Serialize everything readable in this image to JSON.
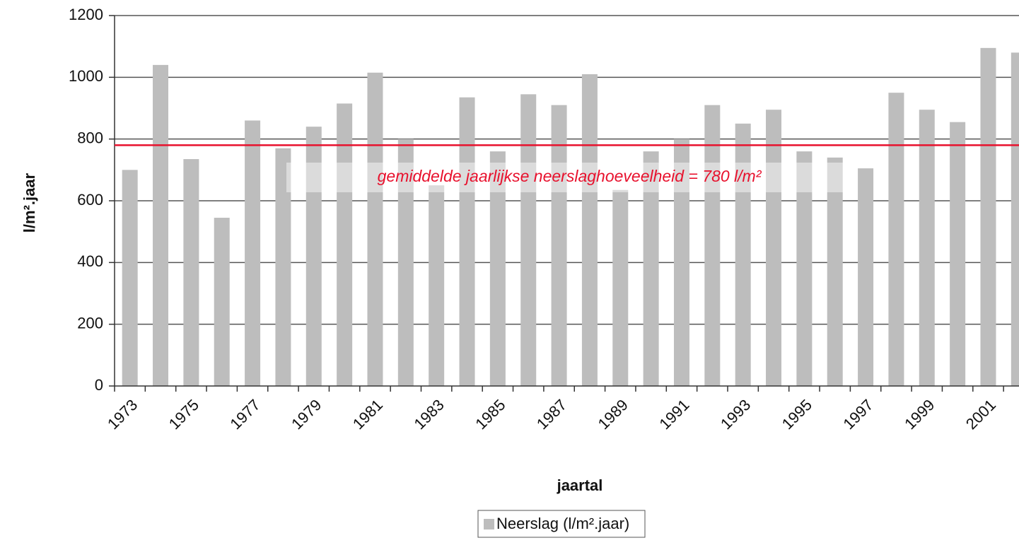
{
  "chart_data": {
    "type": "bar",
    "x_label": "jaartal",
    "y_label": "l/m².jaar",
    "categories": [
      "1973",
      null,
      "1975",
      null,
      "1977",
      null,
      "1979",
      null,
      "1981",
      null,
      "1983",
      null,
      "1985",
      null,
      "1987",
      null,
      "1989",
      null,
      "1991",
      null,
      "1993",
      null,
      "1995",
      null,
      "1997",
      null,
      "1999",
      null,
      "2001",
      null
    ],
    "series": [
      {
        "name": "Neerslag (l/m².jaar)",
        "color": "#bdbdbd",
        "values": [
          700,
          1040,
          735,
          545,
          860,
          770,
          840,
          915,
          1015,
          800,
          650,
          935,
          760,
          945,
          910,
          1010,
          635,
          760,
          800,
          910,
          850,
          895,
          760,
          740,
          705,
          950,
          895,
          855,
          1095,
          1080
        ]
      }
    ],
    "reference_line": {
      "value": 780,
      "label": "gemiddelde jaarlijkse neerslaghoeveelheid = 780 l/m²",
      "color": "#e8112d"
    },
    "ylim": [
      0,
      1200
    ],
    "yticks": [
      0,
      200,
      400,
      600,
      800,
      1000,
      1200
    ],
    "grid": true
  }
}
